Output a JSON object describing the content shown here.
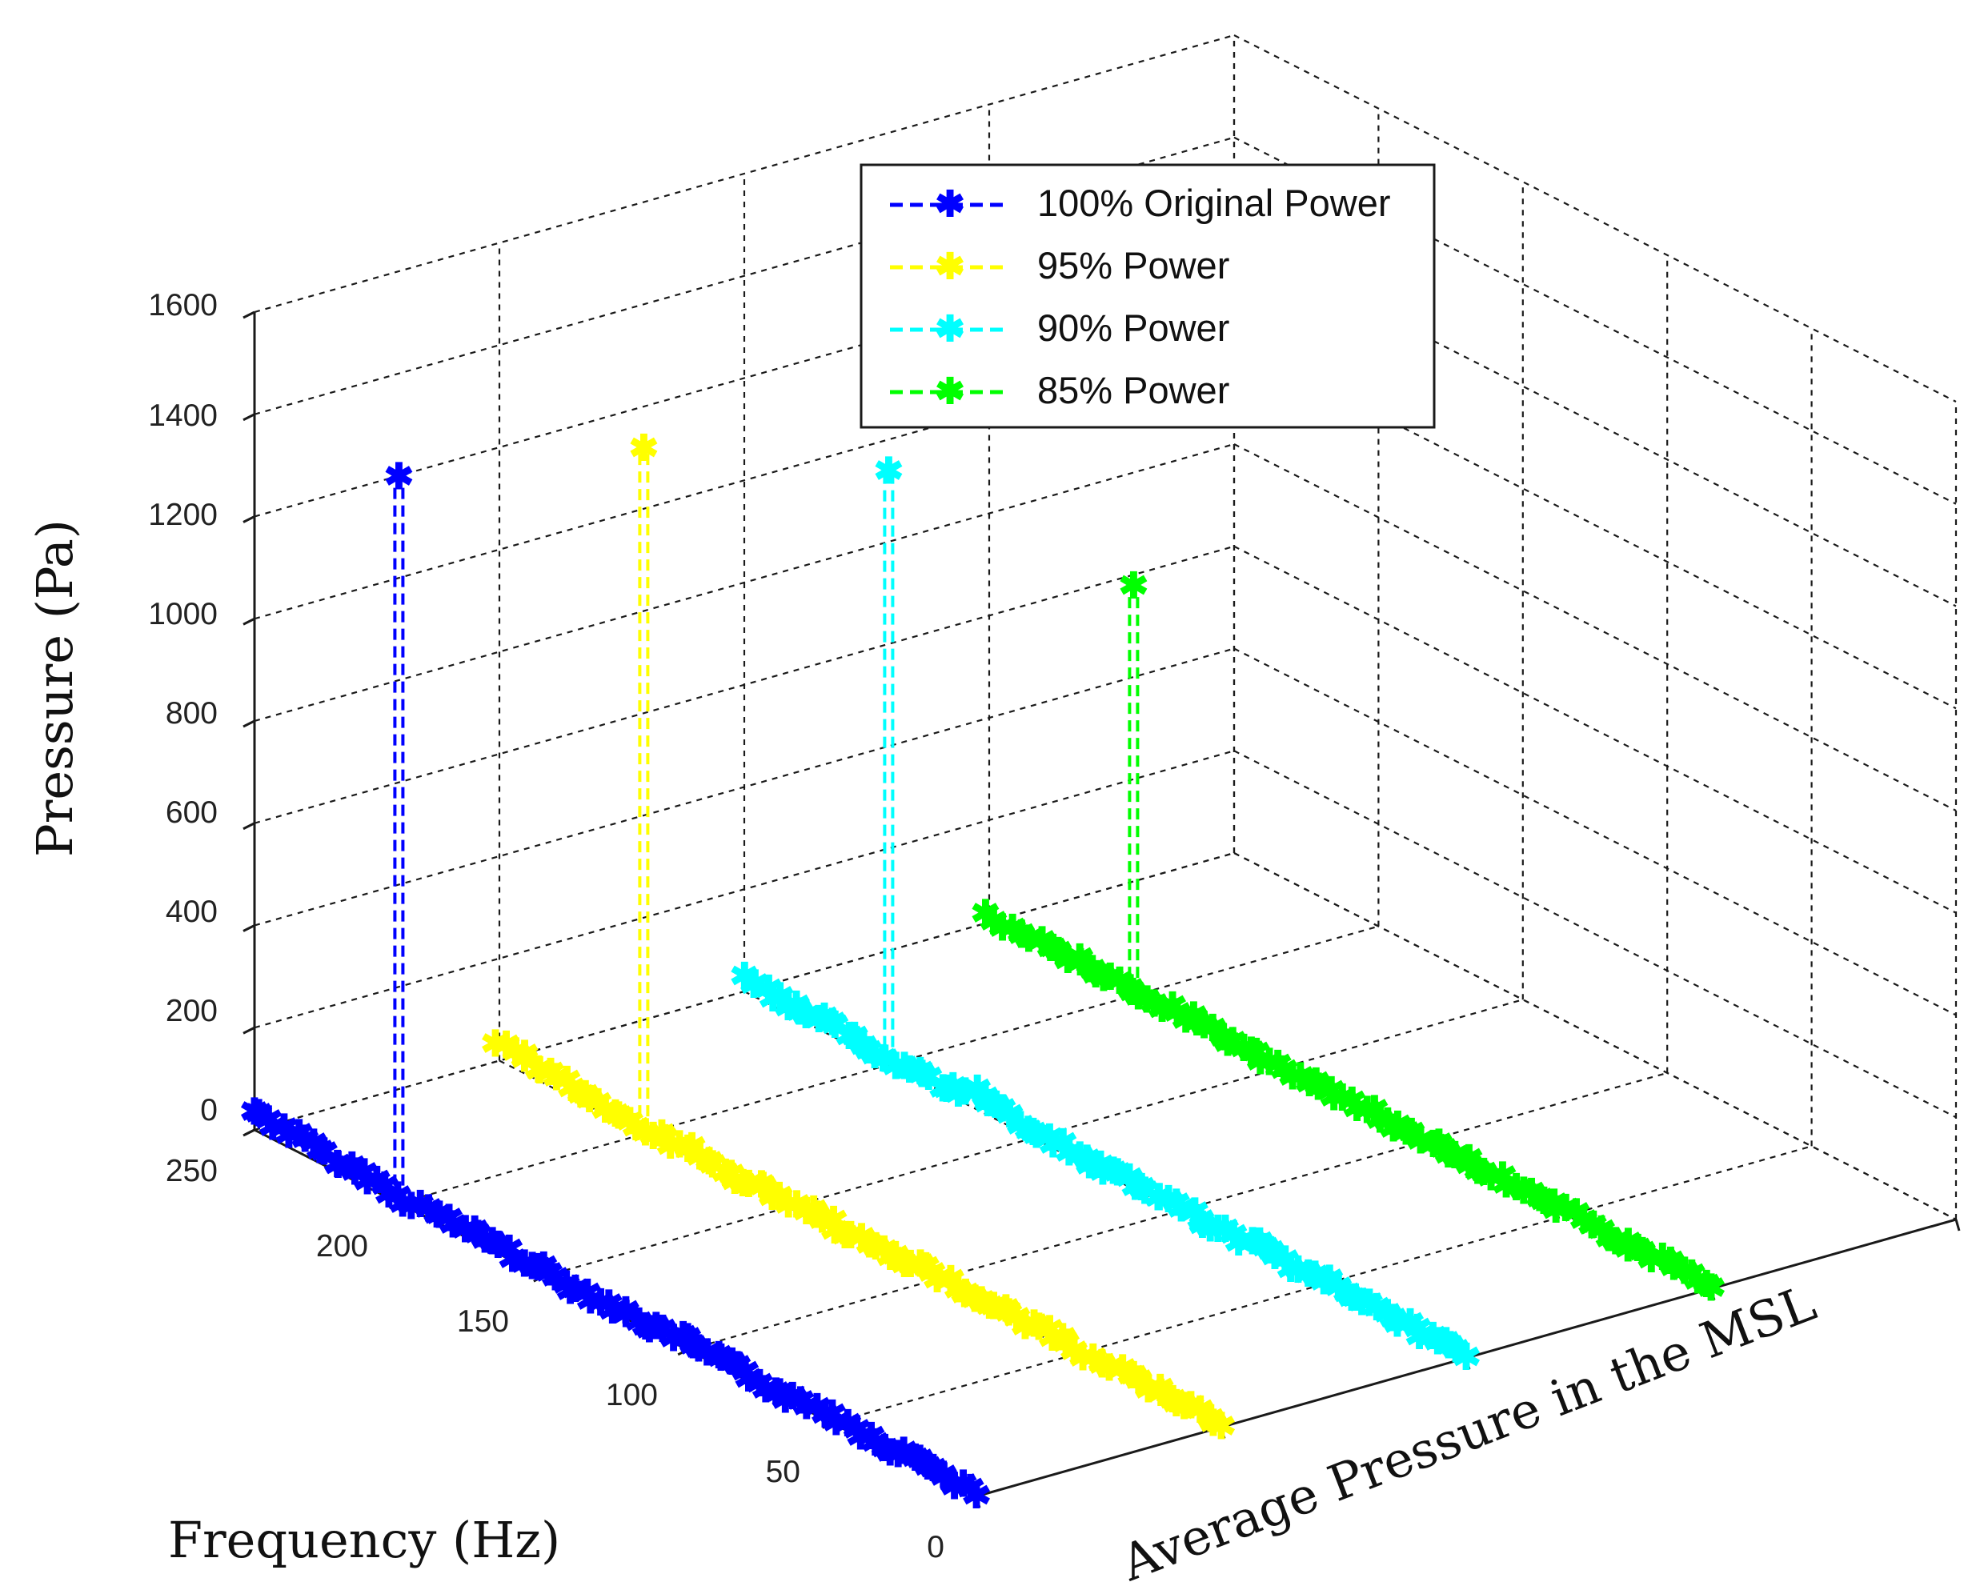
{
  "chart_data": {
    "type": "line3d",
    "title": "",
    "zlabel": "Pressure (Pa)",
    "ylabel": "Frequency (Hz)",
    "xlabel": "Average Pressure in the MSL",
    "zlim": [
      0,
      1600
    ],
    "ylim": [
      0,
      250
    ],
    "z_ticks": [
      "0",
      "200",
      "400",
      "600",
      "800",
      "1000",
      "1200",
      "1400",
      "1600"
    ],
    "y_ticks": [
      "0",
      "50",
      "100",
      "150",
      "200",
      "250"
    ],
    "grid": true,
    "legend_position": "top-center",
    "series": [
      {
        "name": "100% Original Power",
        "color": "#0000ff",
        "depth": 0,
        "peak": {
          "frequency": 200,
          "pressure": 1420
        },
        "frequency": [
          250,
          240,
          230,
          220,
          210,
          200,
          190,
          180,
          170,
          160,
          150,
          140,
          130,
          120,
          110,
          100,
          90,
          80,
          70,
          60,
          50,
          40,
          30,
          20,
          10,
          0
        ],
        "pressure": [
          35,
          30,
          25,
          15,
          20,
          10,
          15,
          12,
          18,
          8,
          12,
          6,
          10,
          5,
          8,
          15,
          10,
          12,
          4,
          10,
          15,
          8,
          5,
          12,
          6,
          0
        ]
      },
      {
        "name": "95% Power",
        "color": "#ffff00",
        "depth": 1,
        "peak": {
          "frequency": 200,
          "pressure": 1340
        },
        "frequency": [
          250,
          240,
          230,
          220,
          210,
          200,
          190,
          180,
          170,
          160,
          150,
          140,
          130,
          120,
          110,
          100,
          90,
          80,
          70,
          60,
          50,
          40,
          30,
          20,
          10,
          0
        ],
        "pressure": [
          30,
          25,
          20,
          10,
          15,
          5,
          10,
          18,
          5,
          12,
          8,
          14,
          6,
          10,
          4,
          16,
          8,
          12,
          5,
          10,
          6,
          4,
          8,
          3,
          5,
          0
        ]
      },
      {
        "name": "90% Power",
        "color": "#00ffff",
        "depth": 2,
        "peak": {
          "frequency": 200,
          "pressure": 1160
        },
        "frequency": [
          250,
          240,
          230,
          220,
          210,
          200,
          190,
          180,
          170,
          160,
          150,
          140,
          130,
          120,
          110,
          100,
          90,
          80,
          70,
          60,
          50,
          40,
          30,
          20,
          10,
          0
        ],
        "pressure": [
          25,
          20,
          15,
          25,
          10,
          5,
          12,
          8,
          30,
          20,
          10,
          15,
          8,
          12,
          6,
          10,
          5,
          8,
          12,
          4,
          10,
          6,
          8,
          3,
          5,
          0
        ]
      },
      {
        "name": "85% Power",
        "color": "#00ff00",
        "depth": 3,
        "peak": {
          "frequency": 200,
          "pressure": 800
        },
        "frequency": [
          250,
          240,
          230,
          220,
          210,
          200,
          190,
          180,
          170,
          160,
          150,
          140,
          130,
          120,
          110,
          100,
          90,
          80,
          70,
          60,
          50,
          40,
          30,
          20,
          10,
          0
        ],
        "pressure": [
          10,
          8,
          6,
          9,
          5,
          7,
          6,
          8,
          5,
          7,
          4,
          6,
          5,
          7,
          3,
          6,
          5,
          4,
          6,
          3,
          5,
          4,
          3,
          4,
          2,
          0
        ]
      }
    ]
  }
}
